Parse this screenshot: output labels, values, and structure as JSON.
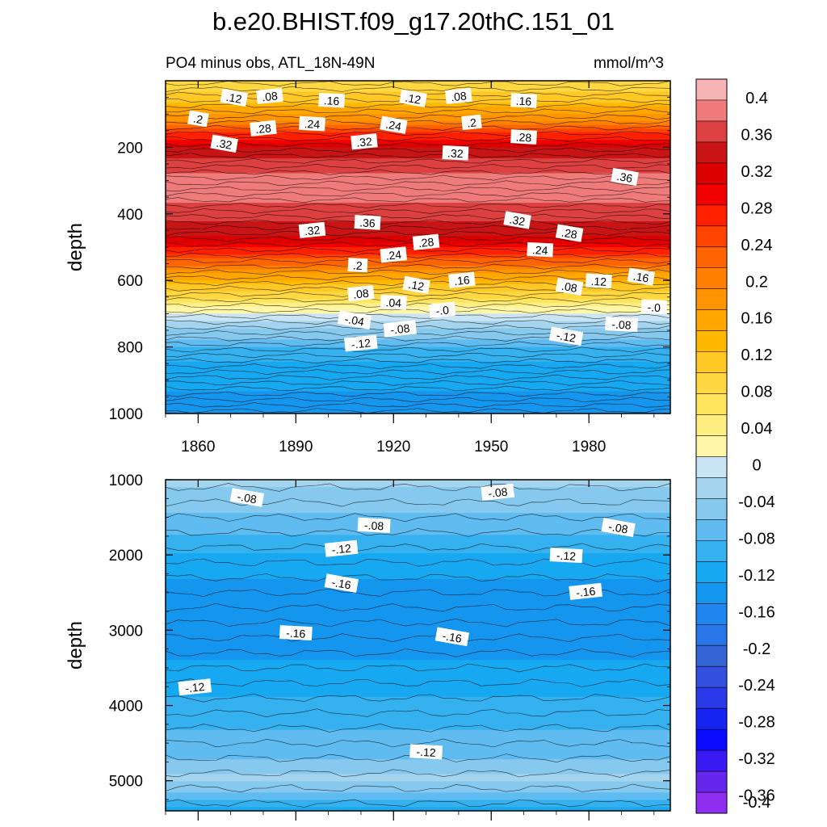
{
  "chart_data": {
    "type": "heatmap",
    "title": "b.e20.BHIST.f09_g17.20thC.151_01",
    "subtitle_left": "PO4 minus obs, ATL_18N-49N",
    "subtitle_right": "mmol/m^3",
    "xlabel": "",
    "ylabel": "depth",
    "xlim": [
      1850,
      2005
    ],
    "x_ticks": [
      1860,
      1890,
      1920,
      1950,
      1980
    ],
    "x_tick_labels": [
      "1860",
      "1890",
      "1920",
      "1950",
      "1980"
    ],
    "panels": [
      {
        "name": "upper",
        "ylim": [
          1000,
          0
        ],
        "y_ticks": [
          200,
          400,
          600,
          800,
          1000
        ],
        "y_tick_labels": [
          "200",
          "400",
          "600",
          "800",
          "1000"
        ],
        "depth_profile": [
          {
            "depth": 0,
            "value": 0.06
          },
          {
            "depth": 60,
            "value": 0.1
          },
          {
            "depth": 110,
            "value": 0.16
          },
          {
            "depth": 160,
            "value": 0.24
          },
          {
            "depth": 210,
            "value": 0.32
          },
          {
            "depth": 260,
            "value": 0.35
          },
          {
            "depth": 330,
            "value": 0.37
          },
          {
            "depth": 400,
            "value": 0.34
          },
          {
            "depth": 450,
            "value": 0.32
          },
          {
            "depth": 500,
            "value": 0.27
          },
          {
            "depth": 550,
            "value": 0.2
          },
          {
            "depth": 600,
            "value": 0.12
          },
          {
            "depth": 650,
            "value": 0.06
          },
          {
            "depth": 690,
            "value": 0.0
          },
          {
            "depth": 720,
            "value": -0.03
          },
          {
            "depth": 760,
            "value": -0.07
          },
          {
            "depth": 810,
            "value": -0.11
          },
          {
            "depth": 860,
            "value": -0.13
          },
          {
            "depth": 940,
            "value": -0.15
          },
          {
            "depth": 1000,
            "value": -0.16
          }
        ],
        "contour_labels": [
          {
            "year": 1871,
            "depth": 52,
            "text": ".12"
          },
          {
            "year": 1882,
            "depth": 47,
            "text": ".08"
          },
          {
            "year": 1901,
            "depth": 60,
            "text": ".16"
          },
          {
            "year": 1926,
            "depth": 54,
            "text": ".12"
          },
          {
            "year": 1940,
            "depth": 47,
            "text": ".08"
          },
          {
            "year": 1960,
            "depth": 61,
            "text": ".16"
          },
          {
            "year": 1860,
            "depth": 115,
            "text": ".2"
          },
          {
            "year": 1880,
            "depth": 144,
            "text": ".28"
          },
          {
            "year": 1895,
            "depth": 130,
            "text": ".24"
          },
          {
            "year": 1920,
            "depth": 134,
            "text": ".24"
          },
          {
            "year": 1944,
            "depth": 126,
            "text": ".2"
          },
          {
            "year": 1960,
            "depth": 170,
            "text": ".28"
          },
          {
            "year": 1868,
            "depth": 190,
            "text": ".32"
          },
          {
            "year": 1911,
            "depth": 184,
            "text": ".32"
          },
          {
            "year": 1939,
            "depth": 218,
            "text": ".32"
          },
          {
            "year": 1991,
            "depth": 290,
            "text": ".36"
          },
          {
            "year": 1895,
            "depth": 450,
            "text": ".32"
          },
          {
            "year": 1912,
            "depth": 427,
            "text": ".36"
          },
          {
            "year": 1958,
            "depth": 420,
            "text": ".32"
          },
          {
            "year": 1930,
            "depth": 486,
            "text": ".28"
          },
          {
            "year": 1965,
            "depth": 509,
            "text": ".24"
          },
          {
            "year": 1974,
            "depth": 459,
            "text": ".28"
          },
          {
            "year": 1920,
            "depth": 524,
            "text": ".24"
          },
          {
            "year": 1909,
            "depth": 555,
            "text": ".2"
          },
          {
            "year": 1927,
            "depth": 615,
            "text": ".12"
          },
          {
            "year": 1941,
            "depth": 600,
            "text": ".16"
          },
          {
            "year": 1983,
            "depth": 603,
            "text": ".12"
          },
          {
            "year": 1996,
            "depth": 590,
            "text": ".16"
          },
          {
            "year": 1910,
            "depth": 640,
            "text": ".08"
          },
          {
            "year": 1920,
            "depth": 667,
            "text": ".04"
          },
          {
            "year": 1974,
            "depth": 620,
            "text": ".08"
          },
          {
            "year": 1935,
            "depth": 690,
            "text": "-.0"
          },
          {
            "year": 2000,
            "depth": 681,
            "text": "-.0"
          },
          {
            "year": 1908,
            "depth": 720,
            "text": "-.04"
          },
          {
            "year": 1922,
            "depth": 746,
            "text": "-.08"
          },
          {
            "year": 1990,
            "depth": 733,
            "text": "-.08"
          },
          {
            "year": 1973,
            "depth": 769,
            "text": "-.12"
          },
          {
            "year": 1910,
            "depth": 790,
            "text": "-.12"
          }
        ]
      },
      {
        "name": "lower",
        "ylim": [
          5400,
          1000
        ],
        "y_ticks": [
          1000,
          2000,
          3000,
          4000,
          5000
        ],
        "y_tick_labels": [
          "1000",
          "2000",
          "3000",
          "4000",
          "5000"
        ],
        "depth_profile": [
          {
            "depth": 1000,
            "value": -0.05
          },
          {
            "depth": 1300,
            "value": -0.07
          },
          {
            "depth": 1700,
            "value": -0.1
          },
          {
            "depth": 2000,
            "value": -0.13
          },
          {
            "depth": 2400,
            "value": -0.155
          },
          {
            "depth": 3000,
            "value": -0.165
          },
          {
            "depth": 3600,
            "value": -0.14
          },
          {
            "depth": 4200,
            "value": -0.11
          },
          {
            "depth": 4700,
            "value": -0.08
          },
          {
            "depth": 5000,
            "value": -0.05
          },
          {
            "depth": 5400,
            "value": -0.14
          }
        ],
        "contour_labels": [
          {
            "year": 1875,
            "depth": 1240,
            "text": "-.08"
          },
          {
            "year": 1952,
            "depth": 1170,
            "text": "-.08"
          },
          {
            "year": 1914,
            "depth": 1610,
            "text": "-.08"
          },
          {
            "year": 1989,
            "depth": 1640,
            "text": "-.08"
          },
          {
            "year": 1904,
            "depth": 1920,
            "text": "-.12"
          },
          {
            "year": 1973,
            "depth": 2010,
            "text": "-.12"
          },
          {
            "year": 1904,
            "depth": 2380,
            "text": "-.16"
          },
          {
            "year": 1979,
            "depth": 2490,
            "text": "-.16"
          },
          {
            "year": 1890,
            "depth": 3040,
            "text": "-.16"
          },
          {
            "year": 1938,
            "depth": 3090,
            "text": "-.16"
          },
          {
            "year": 1859,
            "depth": 3760,
            "text": "-.12"
          },
          {
            "year": 1930,
            "depth": 4620,
            "text": "-.12"
          }
        ]
      }
    ],
    "colorbar": {
      "labels": [
        "0.4",
        "0.36",
        "0.32",
        "0.28",
        "0.24",
        "0.2",
        "0.16",
        "0.12",
        "0.08",
        "0.04",
        "0",
        "-0.04",
        "-0.08",
        "-0.12",
        "-0.16",
        "-0.2",
        "-0.24",
        "-0.28",
        "-0.32",
        "-0.36",
        "-0.4"
      ],
      "colors_top_to_bottom": [
        "#f7b4b4",
        "#ef7b7b",
        "#dd4040",
        "#c81414",
        "#dc0000",
        "#f20000",
        "#ff2000",
        "#fe4400",
        "#ff6400",
        "#ff7f00",
        "#ff9400",
        "#ffa600",
        "#ffb800",
        "#ffc824",
        "#ffd740",
        "#ffe45e",
        "#ffee82",
        "#fff6a8",
        "#c9e5f5",
        "#a4d4ee",
        "#87c9ee",
        "#60bcf0",
        "#36b1f0",
        "#16a8f0",
        "#1496ee",
        "#1e86ee",
        "#2876e8",
        "#3464d6",
        "#3450de",
        "#2a3ae8",
        "#1524f0",
        "#0a0aff",
        "#3a1af2",
        "#6626ee",
        "#8f2ef0"
      ]
    }
  }
}
